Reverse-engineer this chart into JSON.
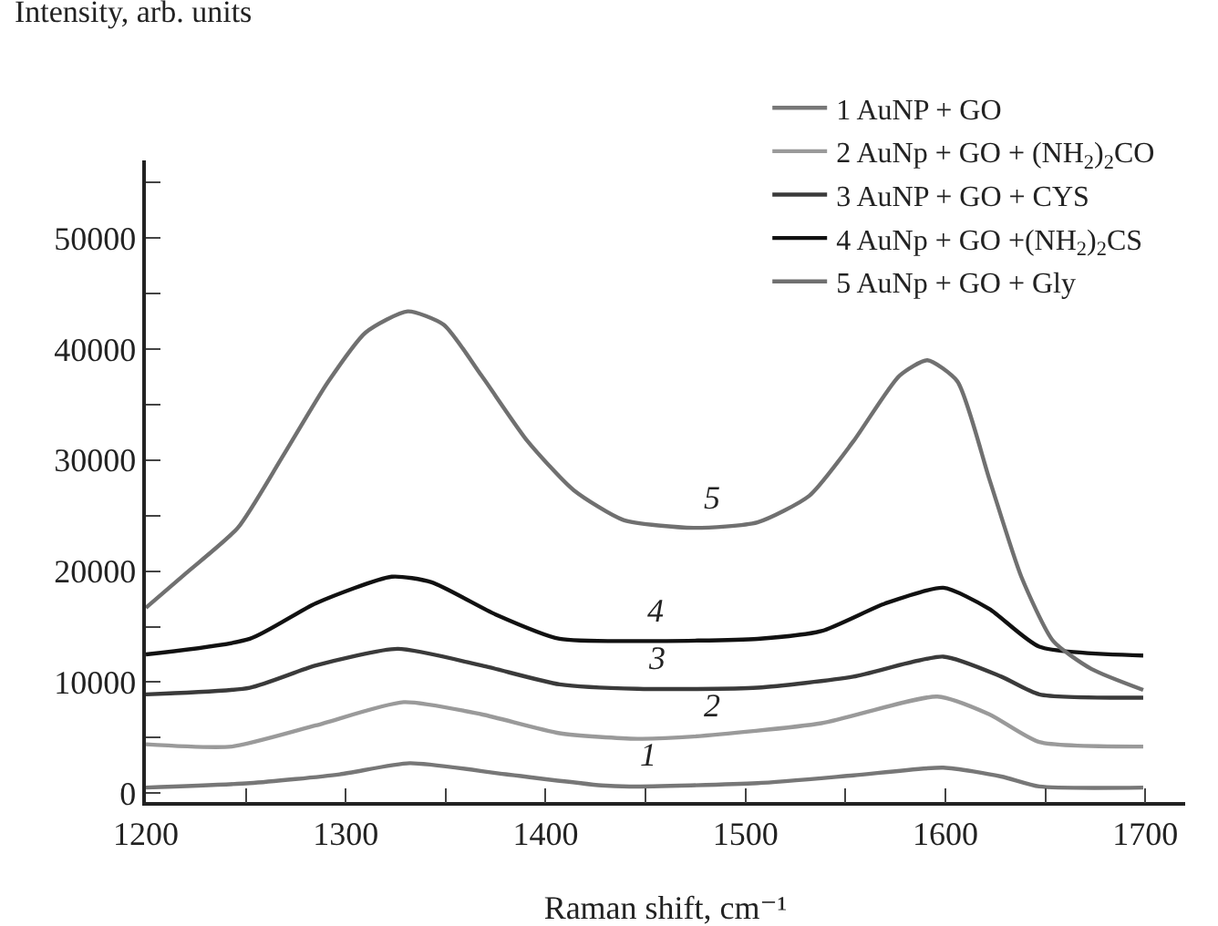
{
  "chart_data": {
    "type": "line",
    "xlabel": "Raman shift, cm⁻¹",
    "ylabel": "Intensity, arb. units",
    "xlim": [
      1200,
      1720
    ],
    "ylim": [
      -800,
      57000
    ],
    "xticks": [
      1200,
      {
        "value": 1250,
        "label": null
      },
      1300,
      {
        "value": 1350,
        "label": null
      },
      1400,
      {
        "value": 1450,
        "label": null
      },
      1500,
      {
        "value": 1550,
        "label": null
      },
      1600,
      {
        "value": 1650,
        "label": null
      },
      1700
    ],
    "yticks": [
      0,
      {
        "value": 5000,
        "label": null
      },
      10000,
      {
        "value": 15000,
        "label": null
      },
      20000,
      {
        "value": 25000,
        "label": null
      },
      30000,
      {
        "value": 35000,
        "label": null
      },
      40000,
      {
        "value": 45000,
        "label": null
      },
      50000,
      {
        "value": 55000,
        "label": null
      }
    ],
    "grid": false,
    "legend": "top right",
    "marker": "none",
    "line_style": "solid",
    "series": [
      {
        "name": "1 AuNP + GO",
        "color": "#777777",
        "x": [
          1200,
          1252,
          1297,
          1332,
          1380,
          1428,
          1442,
          1506,
          1554,
          1599,
          1628,
          1647,
          1699
        ],
        "values": [
          500,
          900,
          1700,
          2700,
          1700,
          700,
          600,
          900,
          1600,
          2300,
          1500,
          600,
          500
        ]
      },
      {
        "name": "2 AuNp + GO + (NH$_{2}$)$_{2}$CO",
        "color": "#9a9a9a",
        "x": [
          1200,
          1243,
          1285,
          1329,
          1368,
          1407,
          1446,
          1474,
          1538,
          1596,
          1622,
          1647,
          1699
        ],
        "values": [
          4400,
          4200,
          6100,
          8200,
          7100,
          5400,
          4900,
          5100,
          6300,
          8700,
          7100,
          4600,
          4200
        ]
      },
      {
        "name": "3 AuNP + GO + CYS",
        "color": "#3a3a3a",
        "x": [
          1200,
          1252,
          1285,
          1326,
          1368,
          1407,
          1446,
          1506,
          1554,
          1599,
          1628,
          1647,
          1699
        ],
        "values": [
          8900,
          9500,
          11500,
          13000,
          11500,
          9800,
          9400,
          9500,
          10500,
          12300,
          10500,
          8900,
          8600
        ]
      },
      {
        "name": "4 AuNp + GO +(NH$_{2}$)$_{2}$CS",
        "color": "#111111",
        "x": [
          1200,
          1252,
          1285,
          1323,
          1343,
          1375,
          1407,
          1446,
          1506,
          1538,
          1570,
          1599,
          1622,
          1647,
          1699
        ],
        "values": [
          12500,
          13900,
          17100,
          19500,
          19000,
          16100,
          13900,
          13700,
          13900,
          14600,
          17100,
          18500,
          16600,
          13200,
          12400
        ]
      },
      {
        "name": "5 AuNp + GO + Gly",
        "color": "#707070",
        "x": [
          1200,
          1220,
          1246,
          1268,
          1291,
          1310,
          1331,
          1349,
          1368,
          1391,
          1414,
          1439,
          1474,
          1506,
          1532,
          1554,
          1577,
          1591,
          1606,
          1622,
          1638,
          1654,
          1673,
          1699
        ],
        "values": [
          16700,
          19800,
          23900,
          30200,
          37000,
          41500,
          43400,
          42200,
          37600,
          31700,
          27300,
          24600,
          23900,
          24400,
          26800,
          31700,
          37600,
          39000,
          37100,
          28300,
          19500,
          13700,
          11200,
          9300
        ]
      }
    ],
    "annotations": [
      {
        "text": "1",
        "x": 1442,
        "y": 600
      },
      {
        "text": "2",
        "x": 1474,
        "y": 5100
      },
      {
        "text": "3",
        "x": 1446,
        "y": 9400
      },
      {
        "text": "4",
        "x": 1446,
        "y": 13700
      },
      {
        "text": "5",
        "x": 1474,
        "y": 23900
      }
    ]
  }
}
